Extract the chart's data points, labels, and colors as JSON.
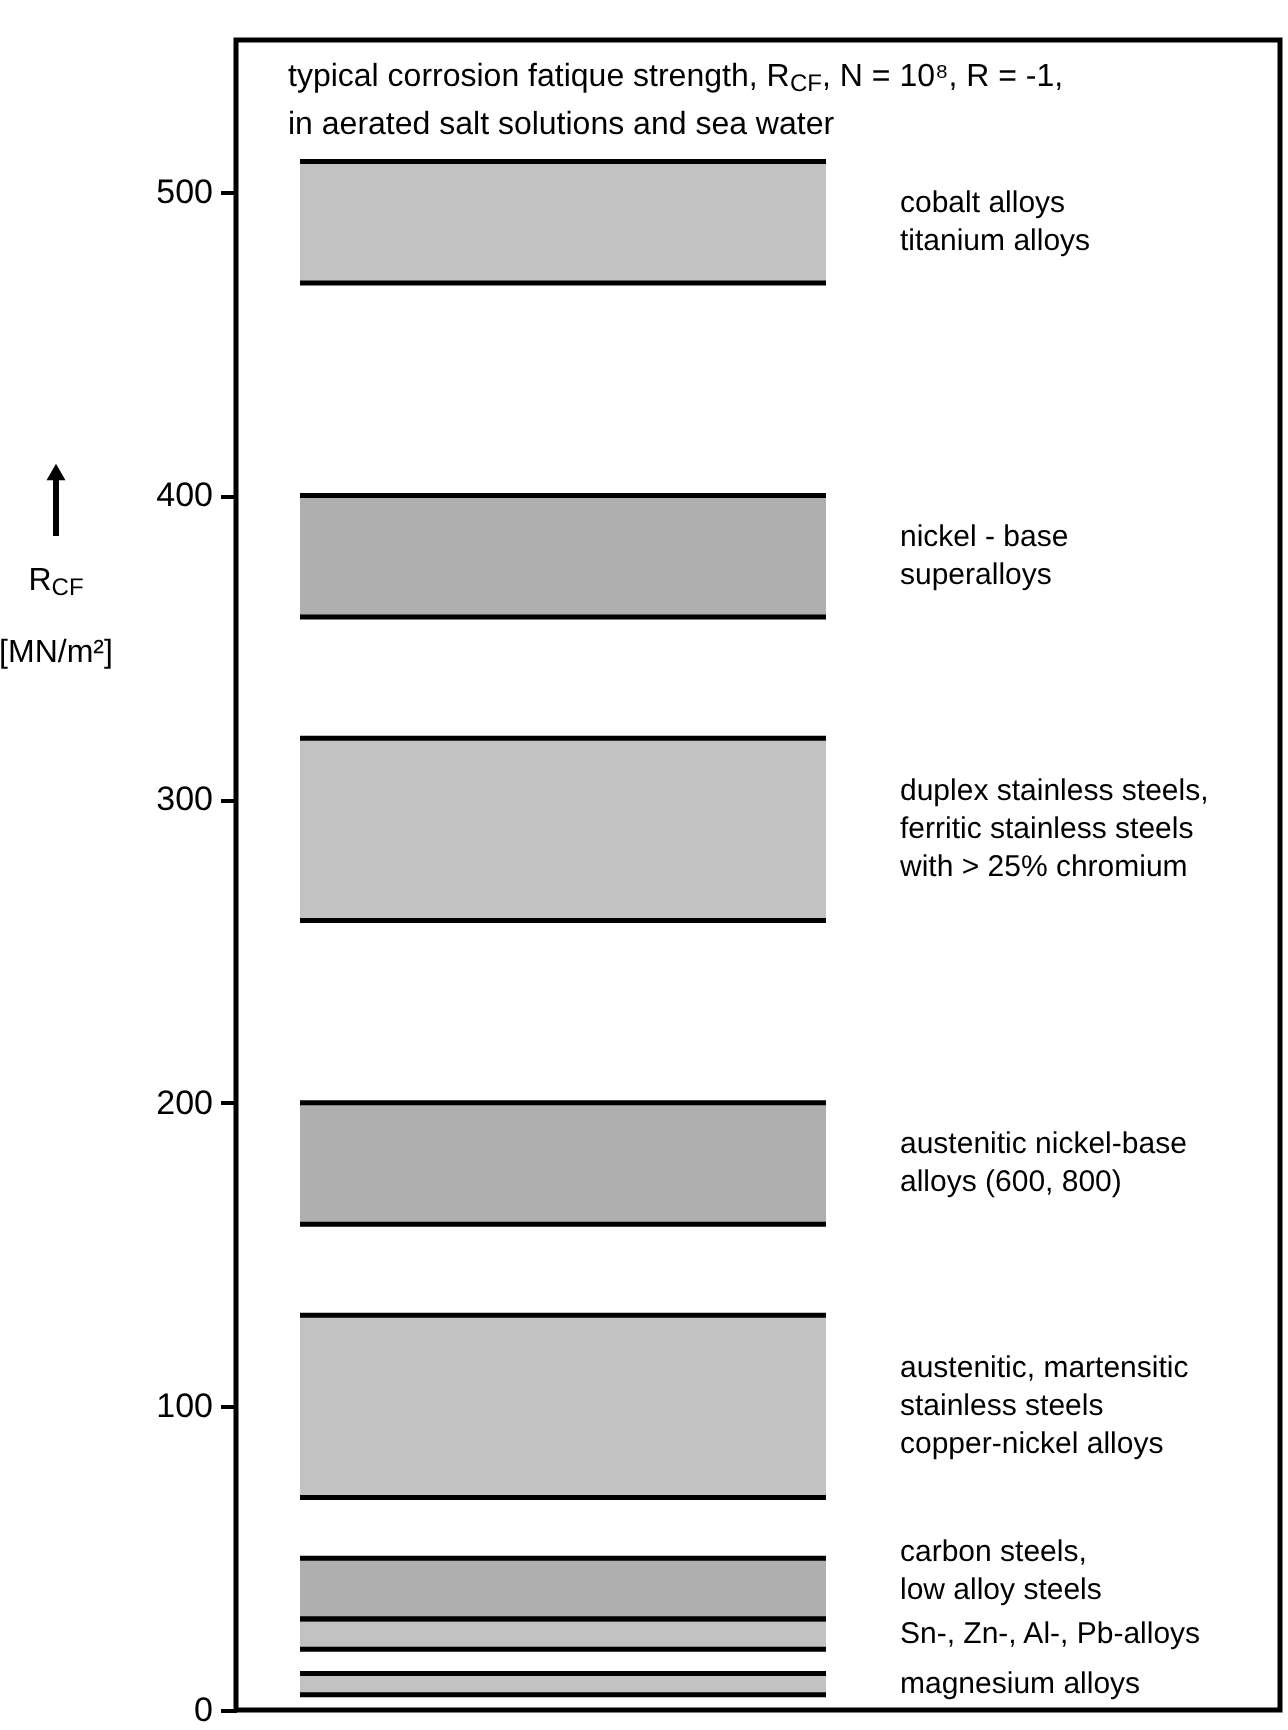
{
  "chart_data": {
    "type": "bar",
    "title": "typical corrosion fatique strength, R$_{CF}$, N = 10⁸, R = -1,\nin aerated salt solutions and sea water",
    "ylabel": "R$_{CF}$\n[MN/m²]",
    "ylim": [
      0,
      550
    ],
    "yticks": [
      0,
      100,
      200,
      300,
      400,
      500
    ],
    "categories": [
      null
    ],
    "series": [
      {
        "name": "cobalt alloys\ntitanium alloys",
        "color": "#9a9a9a",
        "base": [
          470
        ],
        "values": [
          40
        ]
      },
      {
        "name": "nickel - base\nsuperalloys",
        "color": "#7a7a7a",
        "base": [
          360
        ],
        "values": [
          40
        ]
      },
      {
        "name": "duplex stainless steels,\nferritic stainless steels\nwith > 25% chromium",
        "color": "#9a9a9a",
        "base": [
          260
        ],
        "values": [
          60
        ]
      },
      {
        "name": "austenitic nickel-base\nalloys (600, 800)",
        "color": "#7a7a7a",
        "base": [
          160
        ],
        "values": [
          40
        ]
      },
      {
        "name": "austenitic, martensitic\nstainless steels\ncopper-nickel alloys",
        "color": "#9a9a9a",
        "base": [
          70
        ],
        "values": [
          60
        ]
      },
      {
        "name": "carbon steels,\nlow alloy steels",
        "color": "#7a7a7a",
        "base": [
          30
        ],
        "values": [
          20
        ]
      },
      {
        "name": "Sn-, Zn-, Al-, Pb-alloys",
        "color": "#9a9a9a",
        "base": [
          20
        ],
        "values": [
          10
        ]
      },
      {
        "name": "magnesium alloys",
        "color": "#9a9a9a",
        "base": [
          5
        ],
        "values": [
          7
        ]
      }
    ]
  }
}
